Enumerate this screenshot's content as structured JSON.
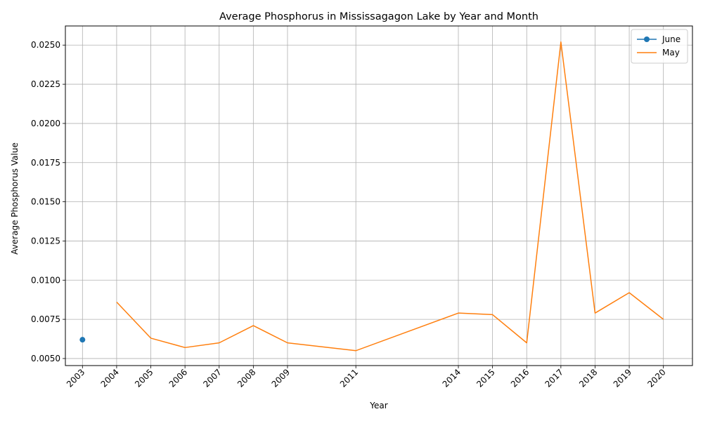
{
  "chart_data": {
    "type": "line",
    "title": "Average Phosphorus in Mississagagon Lake by Year and Month",
    "xlabel": "Year",
    "ylabel": "Average Phosphorus Value",
    "x_ticks": [
      "2003",
      "2004",
      "2005",
      "2006",
      "2007",
      "2008",
      "2009",
      "2011",
      "2014",
      "2015",
      "2016",
      "2017",
      "2018",
      "2019",
      "2020"
    ],
    "y_ticks": [
      "0.0050",
      "0.0075",
      "0.0100",
      "0.0125",
      "0.0150",
      "0.0175",
      "0.0200",
      "0.0225",
      "0.0250"
    ],
    "xlim": [
      2002.5,
      2020.85
    ],
    "ylim": [
      0.00455,
      0.02622
    ],
    "grid": true,
    "legend_position": "top-right",
    "series": [
      {
        "name": "June",
        "color": "#1f77b4",
        "marker": "circle",
        "x": [
          2003
        ],
        "y": [
          0.0062
        ]
      },
      {
        "name": "May",
        "color": "#ff7f0e",
        "marker": "none",
        "x": [
          2004,
          2005,
          2006,
          2007,
          2008,
          2009,
          2011,
          2014,
          2015,
          2016,
          2017,
          2018,
          2019,
          2020
        ],
        "y": [
          0.0086,
          0.0063,
          0.0057,
          0.006,
          0.0071,
          0.006,
          0.0055,
          0.0079,
          0.0078,
          0.006,
          0.0252,
          0.0079,
          0.0092,
          0.0075
        ]
      }
    ]
  }
}
